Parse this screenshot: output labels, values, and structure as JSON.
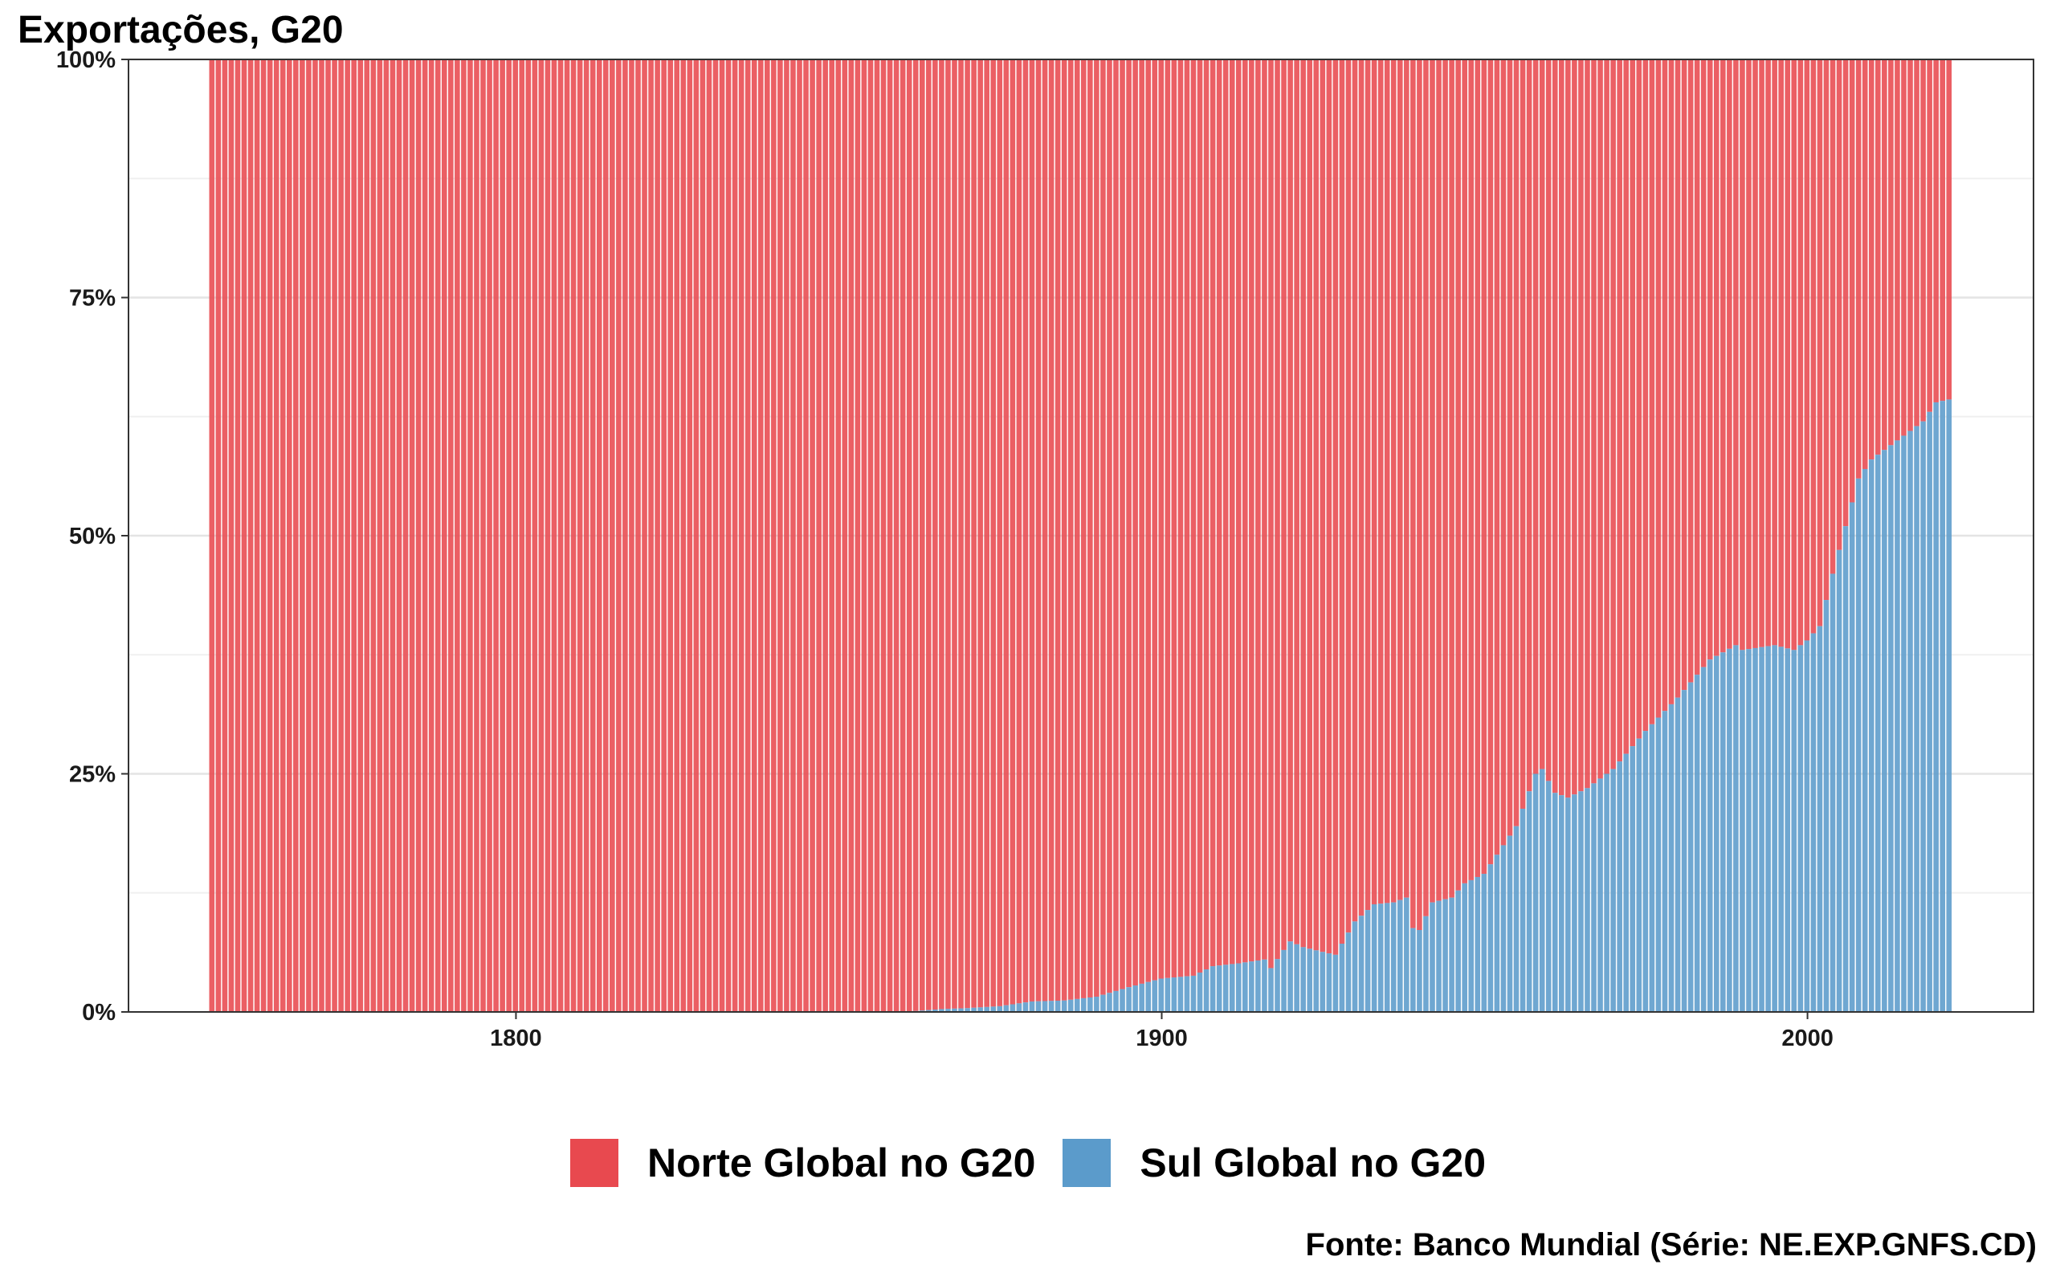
{
  "chart_data": {
    "type": "bar",
    "stacked": true,
    "percent": true,
    "title": "Exportações, G20",
    "caption": "Fonte: Banco Mundial (Série: NE.EXP.GNFS.CD)",
    "xlim": [
      1740,
      2035
    ],
    "ylim": [
      0,
      100
    ],
    "x_ticks": [
      1800,
      1900,
      2000
    ],
    "y_ticks": [
      0,
      25,
      50,
      75,
      100
    ],
    "y_tick_labels": [
      "0%",
      "25%",
      "50%",
      "75%",
      "100%"
    ],
    "grid": true,
    "legend_position": "bottom",
    "x_start": 1753,
    "x_end": 2022,
    "series": [
      {
        "name": "Norte Global no G20",
        "color": "#E8494F"
      },
      {
        "name": "Sul Global no G20",
        "color": "#5B9BCB"
      }
    ],
    "sul_keypoints": [
      [
        1753,
        0
      ],
      [
        1860,
        0
      ],
      [
        1866,
        0.3
      ],
      [
        1870,
        0.4
      ],
      [
        1875,
        0.6
      ],
      [
        1880,
        1.1
      ],
      [
        1885,
        1.2
      ],
      [
        1890,
        1.6
      ],
      [
        1895,
        2.6
      ],
      [
        1900,
        3.5
      ],
      [
        1905,
        3.8
      ],
      [
        1908,
        4.8
      ],
      [
        1912,
        5.1
      ],
      [
        1916,
        5.5
      ],
      [
        1917,
        4.6
      ],
      [
        1919,
        6.5
      ],
      [
        1920,
        7.4
      ],
      [
        1922,
        6.8
      ],
      [
        1925,
        6.3
      ],
      [
        1927,
        6.0
      ],
      [
        1930,
        9.5
      ],
      [
        1933,
        11.3
      ],
      [
        1936,
        11.5
      ],
      [
        1938,
        12.0
      ],
      [
        1939,
        8.8
      ],
      [
        1940,
        8.6
      ],
      [
        1942,
        11.5
      ],
      [
        1945,
        12.0
      ],
      [
        1947,
        13.5
      ],
      [
        1950,
        14.5
      ],
      [
        1955,
        19.5
      ],
      [
        1958,
        25.0
      ],
      [
        1959,
        25.5
      ],
      [
        1961,
        23.0
      ],
      [
        1963,
        22.5
      ],
      [
        1966,
        23.5
      ],
      [
        1970,
        25.5
      ],
      [
        1975,
        29.5
      ],
      [
        1980,
        33.0
      ],
      [
        1985,
        37.0
      ],
      [
        1989,
        38.5
      ],
      [
        1990,
        38.0
      ],
      [
        1995,
        38.5
      ],
      [
        1998,
        38.0
      ],
      [
        2000,
        39.0
      ],
      [
        2002,
        40.5
      ],
      [
        2004,
        46.0
      ],
      [
        2006,
        51.0
      ],
      [
        2008,
        56.0
      ],
      [
        2010,
        58.0
      ],
      [
        2012,
        59.0
      ],
      [
        2014,
        60.0
      ],
      [
        2016,
        61.0
      ],
      [
        2018,
        62.0
      ],
      [
        2020,
        64.0
      ],
      [
        2022,
        64.3
      ]
    ]
  }
}
